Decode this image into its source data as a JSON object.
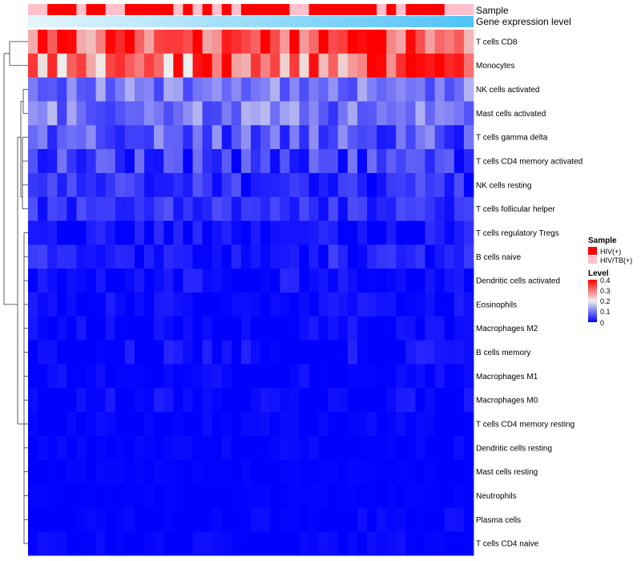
{
  "chart_data": {
    "type": "heatmap",
    "annotation_rows": [
      "Sample",
      "Gene expression level"
    ],
    "row_labels": [
      "T cells CD8",
      "Monocytes",
      "NK cells activated",
      "Mast cells activated",
      "T cells gamma delta",
      "T cells CD4 memory activated",
      "NK cells resting",
      "T cells follicular helper",
      "T cells regulatory  Tregs",
      "B cells naive",
      "Dendritic cells activated",
      "Eosinophils",
      "Macrophages M2",
      "B cells memory",
      "Macrophages M1",
      "Macrophages M0",
      "T cells CD4 memory resting",
      "Dendritic cells resting",
      "Mast cells resting",
      "Neutrophils",
      "Plasma cells",
      "T cells CD4 naive"
    ],
    "column_count": 46,
    "sample_groups": [
      "HIV/TB(+)",
      "HIV/TB(+)",
      "HIV(+)",
      "HIV(+)",
      "HIV(+)",
      "HIV/TB(+)",
      "HIV(+)",
      "HIV(+)",
      "HIV/TB(+)",
      "HIV/TB(+)",
      "HIV(+)",
      "HIV(+)",
      "HIV(+)",
      "HIV(+)",
      "HIV(+)",
      "HIV/TB(+)",
      "HIV(+)",
      "HIV/TB(+)",
      "HIV(+)",
      "HIV/TB(+)",
      "HIV(+)",
      "HIV/TB(+)",
      "HIV(+)",
      "HIV(+)",
      "HIV(+)",
      "HIV(+)",
      "HIV(+)",
      "HIV/TB(+)",
      "HIV/TB(+)",
      "HIV(+)",
      "HIV(+)",
      "HIV(+)",
      "HIV(+)",
      "HIV(+)",
      "HIV(+)",
      "HIV(+)",
      "HIV/TB(+)",
      "HIV(+)",
      "HIV/TB(+)",
      "HIV(+)",
      "HIV(+)",
      "HIV(+)",
      "HIV(+)",
      "HIV/TB(+)",
      "HIV/TB(+)",
      "HIV/TB(+)"
    ],
    "legend": {
      "sample": {
        "title": "Sample",
        "entries": [
          {
            "label": "HIV(+)",
            "color": "#FF0000"
          },
          {
            "label": "HIV/TB(+)",
            "color": "#FFC0CB"
          }
        ]
      },
      "level": {
        "title": "Level",
        "ticks": [
          "0.4",
          "0.3",
          "0.2",
          "0.1",
          "0"
        ],
        "range": [
          0,
          0.4
        ],
        "colors": {
          "low": "#0000FF",
          "mid": "#EEEEEE",
          "high": "#FF0000"
        }
      }
    },
    "gene_expression_gradient": [
      "#E6F5FC",
      "#4FC3F7"
    ],
    "row_means": [
      0.33,
      0.3,
      0.1,
      0.1,
      0.07,
      0.05,
      0.035,
      0.04,
      0.01,
      0.025,
      0.01,
      0.005,
      0.004,
      0.008,
      0.003,
      0.006,
      0.002,
      0.002,
      0.001,
      0.001,
      0.002,
      0.002
    ],
    "row_spread": [
      0.09,
      0.11,
      0.05,
      0.06,
      0.06,
      0.05,
      0.04,
      0.03,
      0.03,
      0.03,
      0.025,
      0.02,
      0.02,
      0.025,
      0.015,
      0.02,
      0.01,
      0.01,
      0.005,
      0.003,
      0.015,
      0.012
    ]
  }
}
